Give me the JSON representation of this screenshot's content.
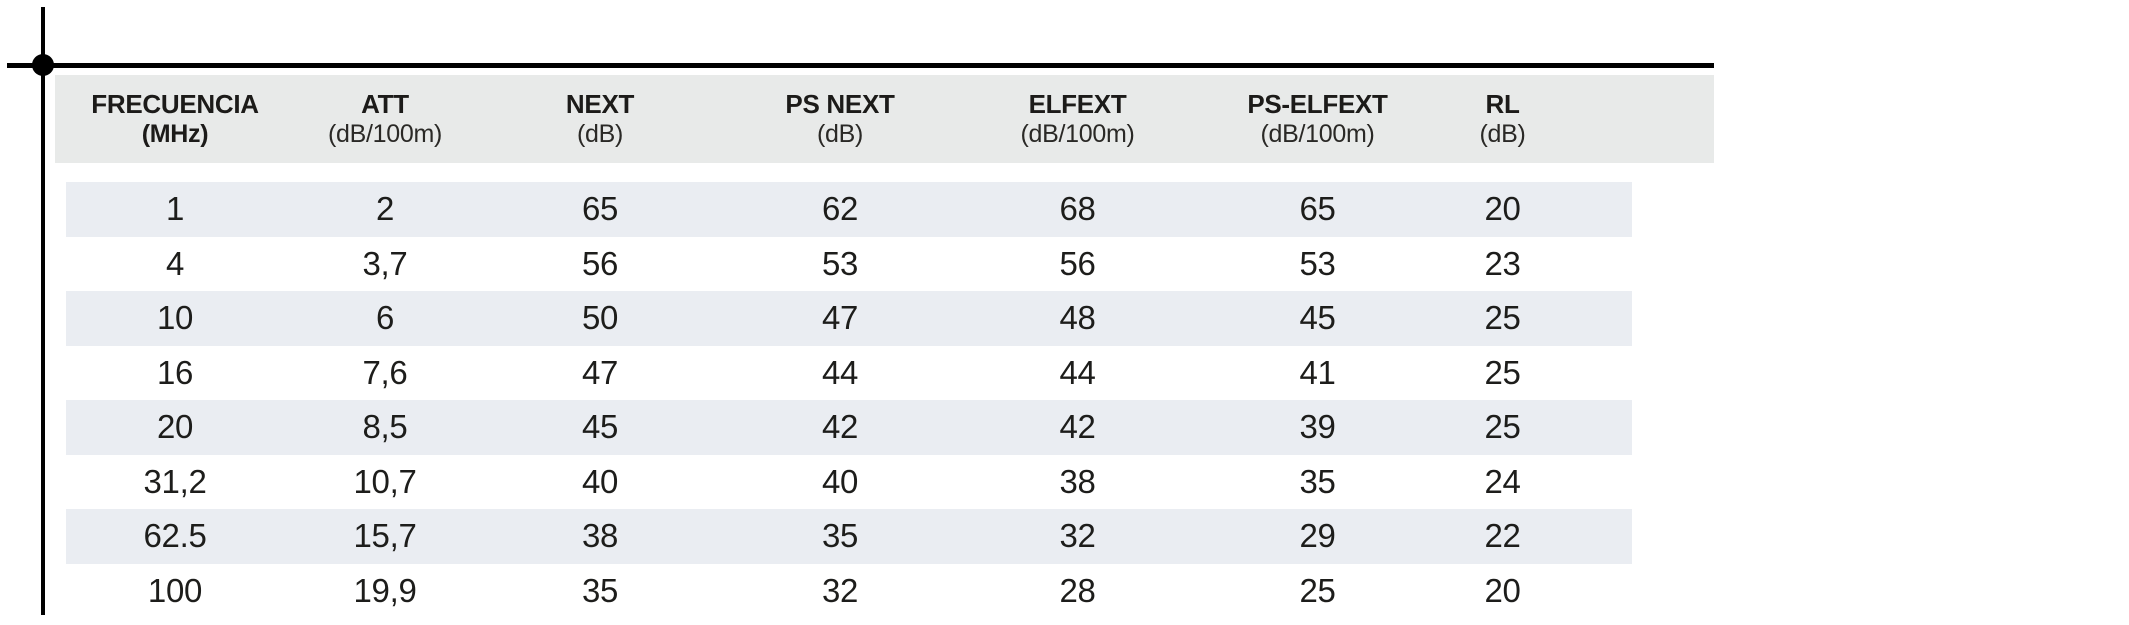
{
  "table": {
    "columns": [
      {
        "label": "FRECUENCIA",
        "unit": "(MHz)",
        "unit_bold": true
      },
      {
        "label": "ATT",
        "unit": "(dB/100m)",
        "unit_bold": false
      },
      {
        "label": "NEXT",
        "unit": "(dB)",
        "unit_bold": false
      },
      {
        "label": "PS NEXT",
        "unit": "(dB)",
        "unit_bold": false
      },
      {
        "label": "ELFEXT",
        "unit": "(dB/100m)",
        "unit_bold": false
      },
      {
        "label": "PS-ELFEXT",
        "unit": "(dB/100m)",
        "unit_bold": false
      },
      {
        "label": "RL",
        "unit": "(dB)",
        "unit_bold": false
      }
    ],
    "rows": [
      [
        "1",
        "2",
        "65",
        "62",
        "68",
        "65",
        "20"
      ],
      [
        "4",
        "3,7",
        "56",
        "53",
        "56",
        "53",
        "23"
      ],
      [
        "10",
        "6",
        "50",
        "47",
        "48",
        "45",
        "25"
      ],
      [
        "16",
        "7,6",
        "47",
        "44",
        "44",
        "41",
        "25"
      ],
      [
        "20",
        "8,5",
        "45",
        "42",
        "42",
        "39",
        "25"
      ],
      [
        "31,2",
        "10,7",
        "40",
        "40",
        "38",
        "35",
        "24"
      ],
      [
        "62.5",
        "15,7",
        "38",
        "35",
        "32",
        "29",
        "22"
      ],
      [
        "100",
        "19,9",
        "35",
        "32",
        "28",
        "25",
        "20"
      ]
    ]
  },
  "colors": {
    "header_band": "#e8eae9",
    "row_stripe": "#eaedf2",
    "text": "#1d1d1b",
    "marks": "#000000",
    "background": "#ffffff"
  }
}
